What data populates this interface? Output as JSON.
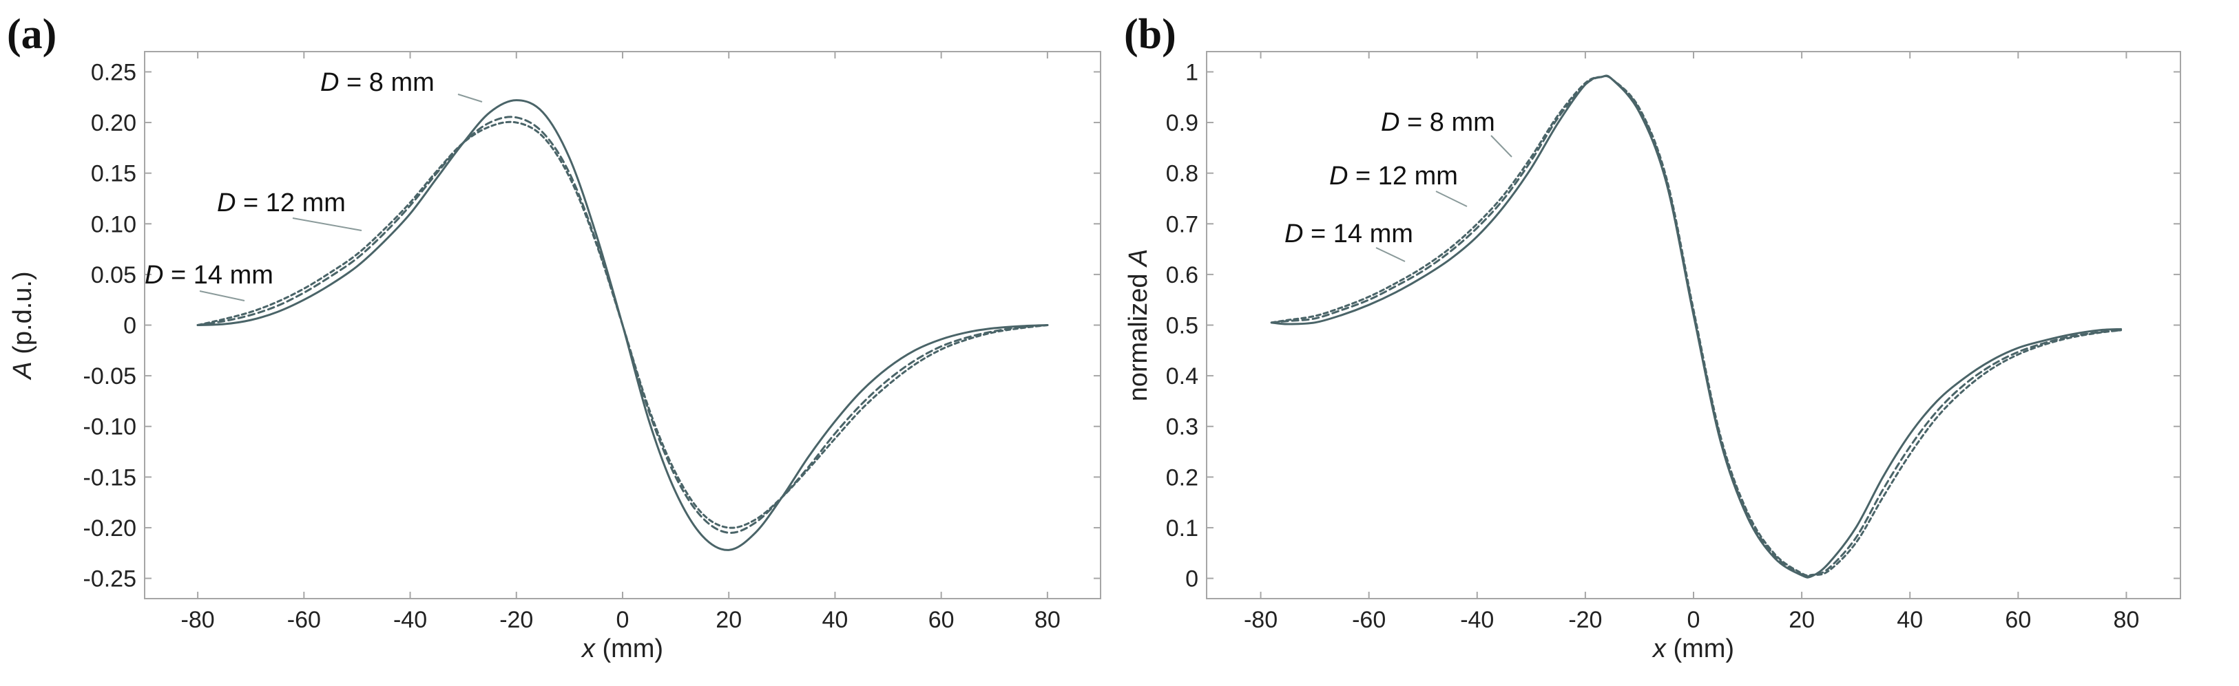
{
  "figure": {
    "colors": {
      "series": "#4a6468",
      "frame": "#a6a6a6",
      "text": "#222222"
    }
  },
  "chart_data": [
    {
      "panel": "(a)",
      "type": "line",
      "title": "",
      "xlabel": "x (mm)",
      "ylabel": "A (p.d.u.)",
      "xlim": [
        -90,
        90
      ],
      "ylim": [
        -0.27,
        0.27
      ],
      "x_ticks": [
        -80,
        -60,
        -40,
        -20,
        0,
        20,
        40,
        60,
        80
      ],
      "x_tick_labels": [
        "-80",
        "-60",
        "-40",
        "-20",
        "0",
        "20",
        "40",
        "60",
        "80"
      ],
      "y_ticks": [
        0.25,
        0.2,
        0.15,
        0.1,
        0.05,
        0,
        -0.05,
        -0.1,
        -0.15,
        -0.2,
        -0.25
      ],
      "y_tick_labels": [
        "0.25",
        "0.20",
        "0.15",
        "0.10",
        "0.05",
        "0",
        "-0.05",
        "-0.10",
        "-0.15",
        "-0.20",
        "-0.25"
      ],
      "x": [
        -80,
        -75,
        -70,
        -65,
        -60,
        -55,
        -50,
        -45,
        -40,
        -35,
        -30,
        -25,
        -20,
        -15,
        -10,
        -5,
        0,
        5,
        10,
        15,
        20,
        25,
        30,
        35,
        40,
        45,
        50,
        55,
        60,
        65,
        70,
        75,
        80
      ],
      "series": [
        {
          "name": "D = 8 mm",
          "style": "solid",
          "values": [
            0.0,
            0.001,
            0.005,
            0.013,
            0.025,
            0.04,
            0.058,
            0.082,
            0.11,
            0.145,
            0.18,
            0.21,
            0.222,
            0.21,
            0.165,
            0.09,
            0.0,
            -0.095,
            -0.165,
            -0.208,
            -0.222,
            -0.205,
            -0.17,
            -0.13,
            -0.095,
            -0.065,
            -0.042,
            -0.025,
            -0.014,
            -0.007,
            -0.003,
            -0.001,
            0.0
          ]
        },
        {
          "name": "D = 12 mm",
          "style": "dashed",
          "values": [
            0.0,
            0.004,
            0.01,
            0.019,
            0.032,
            0.048,
            0.066,
            0.09,
            0.118,
            0.15,
            0.18,
            0.2,
            0.205,
            0.19,
            0.15,
            0.083,
            0.0,
            -0.086,
            -0.15,
            -0.19,
            -0.205,
            -0.195,
            -0.17,
            -0.14,
            -0.107,
            -0.078,
            -0.054,
            -0.035,
            -0.021,
            -0.012,
            -0.006,
            -0.002,
            0.0
          ]
        },
        {
          "name": "D = 14 mm",
          "style": "dashed",
          "values": [
            0.0,
            0.006,
            0.013,
            0.023,
            0.036,
            0.052,
            0.07,
            0.094,
            0.121,
            0.152,
            0.18,
            0.196,
            0.2,
            0.186,
            0.146,
            0.081,
            0.0,
            -0.083,
            -0.146,
            -0.186,
            -0.2,
            -0.192,
            -0.17,
            -0.142,
            -0.112,
            -0.083,
            -0.059,
            -0.039,
            -0.024,
            -0.014,
            -0.007,
            -0.003,
            0.0
          ]
        }
      ],
      "annotations": [
        {
          "text": "D = 8 mm",
          "series": "D = 8 mm"
        },
        {
          "text": "D = 12 mm",
          "series": "D = 12 mm"
        },
        {
          "text": "D = 14 mm",
          "series": "D = 14 mm"
        }
      ]
    },
    {
      "panel": "(b)",
      "type": "line",
      "title": "",
      "xlabel": "x (mm)",
      "ylabel": "normalized A",
      "xlim": [
        -90,
        90
      ],
      "ylim": [
        -0.04,
        1.04
      ],
      "x_ticks": [
        -80,
        -60,
        -40,
        -20,
        0,
        20,
        40,
        60,
        80
      ],
      "x_tick_labels": [
        "-80",
        "-60",
        "-40",
        "-20",
        "0",
        "20",
        "40",
        "60",
        "80"
      ],
      "y_ticks": [
        1,
        0.9,
        0.8,
        0.7,
        0.6,
        0.5,
        0.4,
        0.3,
        0.2,
        0.1,
        0
      ],
      "y_tick_labels": [
        "1",
        "0.9",
        "0.8",
        "0.7",
        "0.6",
        "0.5",
        "0.4",
        "0.3",
        "0.2",
        "0.1",
        "0"
      ],
      "x": [
        -78,
        -75,
        -70,
        -65,
        -60,
        -55,
        -50,
        -45,
        -40,
        -35,
        -30,
        -25,
        -20,
        -17,
        -15,
        -10,
        -5,
        0,
        5,
        10,
        15,
        20,
        22,
        25,
        30,
        35,
        40,
        45,
        50,
        55,
        60,
        65,
        70,
        75,
        79
      ],
      "series": [
        {
          "name": "D = 8 mm",
          "style": "solid",
          "values": [
            0.505,
            0.502,
            0.505,
            0.52,
            0.54,
            0.565,
            0.595,
            0.63,
            0.675,
            0.735,
            0.81,
            0.9,
            0.975,
            0.99,
            0.985,
            0.92,
            0.78,
            0.52,
            0.27,
            0.12,
            0.04,
            0.006,
            0.005,
            0.03,
            0.1,
            0.2,
            0.285,
            0.35,
            0.395,
            0.43,
            0.455,
            0.47,
            0.482,
            0.49,
            0.492
          ]
        },
        {
          "name": "D = 12 mm",
          "style": "dashed",
          "values": [
            0.505,
            0.508,
            0.513,
            0.53,
            0.55,
            0.577,
            0.607,
            0.645,
            0.692,
            0.75,
            0.825,
            0.91,
            0.975,
            0.99,
            0.985,
            0.925,
            0.785,
            0.525,
            0.275,
            0.125,
            0.045,
            0.008,
            0.006,
            0.02,
            0.08,
            0.175,
            0.26,
            0.33,
            0.382,
            0.42,
            0.447,
            0.465,
            0.478,
            0.486,
            0.49
          ]
        },
        {
          "name": "D = 14 mm",
          "style": "dashed",
          "values": [
            0.505,
            0.51,
            0.518,
            0.535,
            0.556,
            0.583,
            0.614,
            0.652,
            0.7,
            0.758,
            0.832,
            0.915,
            0.978,
            0.99,
            0.985,
            0.928,
            0.79,
            0.53,
            0.28,
            0.13,
            0.048,
            0.01,
            0.007,
            0.015,
            0.07,
            0.16,
            0.245,
            0.318,
            0.372,
            0.413,
            0.442,
            0.462,
            0.476,
            0.485,
            0.49
          ]
        }
      ],
      "annotations": [
        {
          "text": "D = 8 mm",
          "series": "D = 8 mm"
        },
        {
          "text": "D = 12 mm",
          "series": "D = 12 mm"
        },
        {
          "text": "D = 14 mm",
          "series": "D = 14 mm"
        }
      ]
    }
  ]
}
